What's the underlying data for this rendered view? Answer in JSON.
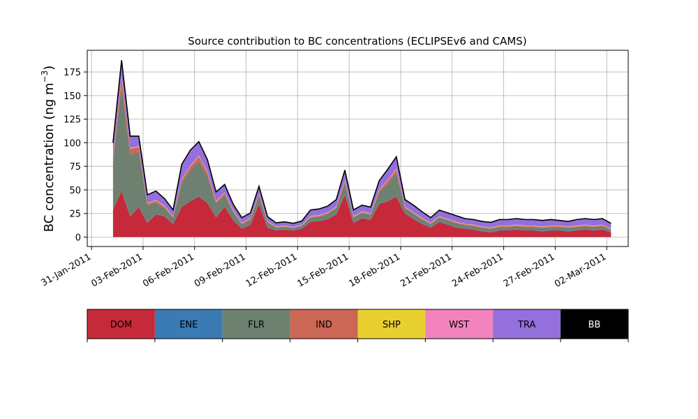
{
  "chart_data": {
    "type": "area",
    "title": "Source contribution to BC concentrations (ECLIPSEv6 and CAMS)",
    "xlabel": "",
    "ylabel_main": "BC concentration (ng m",
    "ylabel_sup": "−3",
    "ylabel_tail": ")",
    "ylim": [
      -10,
      198
    ],
    "xlim": [
      "2011-01-30T18:00",
      "2011-03-03T06:00"
    ],
    "grid": true,
    "yticks": [
      0,
      25,
      50,
      75,
      100,
      125,
      150,
      175
    ],
    "xticks": [
      {
        "date": "2011-01-31",
        "label": "31-Jan-2011"
      },
      {
        "date": "2011-02-03",
        "label": "03-Feb-2011"
      },
      {
        "date": "2011-02-06",
        "label": "06-Feb-2011"
      },
      {
        "date": "2011-02-09",
        "label": "09-Feb-2011"
      },
      {
        "date": "2011-02-12",
        "label": "12-Feb-2011"
      },
      {
        "date": "2011-02-15",
        "label": "15-Feb-2011"
      },
      {
        "date": "2011-02-18",
        "label": "18-Feb-2011"
      },
      {
        "date": "2011-02-21",
        "label": "21-Feb-2011"
      },
      {
        "date": "2011-02-24",
        "label": "24-Feb-2011"
      },
      {
        "date": "2011-02-27",
        "label": "27-Feb-2011"
      },
      {
        "date": "2011-03-02",
        "label": "02-Mar-2011"
      }
    ],
    "x": [
      "2011-02-01T06:00",
      "2011-02-01T18:00",
      "2011-02-02T06:00",
      "2011-02-02T18:00",
      "2011-02-03T06:00",
      "2011-02-03T18:00",
      "2011-02-04T06:00",
      "2011-02-04T18:00",
      "2011-02-05T06:00",
      "2011-02-05T18:00",
      "2011-02-06T06:00",
      "2011-02-06T18:00",
      "2011-02-07T06:00",
      "2011-02-07T18:00",
      "2011-02-08T06:00",
      "2011-02-08T18:00",
      "2011-02-09T06:00",
      "2011-02-09T18:00",
      "2011-02-10T06:00",
      "2011-02-10T18:00",
      "2011-02-11T06:00",
      "2011-02-11T18:00",
      "2011-02-12T06:00",
      "2011-02-12T18:00",
      "2011-02-13T06:00",
      "2011-02-13T18:00",
      "2011-02-14T06:00",
      "2011-02-14T18:00",
      "2011-02-15T06:00",
      "2011-02-15T18:00",
      "2011-02-16T06:00",
      "2011-02-16T18:00",
      "2011-02-17T06:00",
      "2011-02-17T18:00",
      "2011-02-18T06:00",
      "2011-02-18T18:00",
      "2011-02-19T06:00",
      "2011-02-19T18:00",
      "2011-02-20T06:00",
      "2011-02-20T18:00",
      "2011-02-21T06:00",
      "2011-02-21T18:00",
      "2011-02-22T06:00",
      "2011-02-22T18:00",
      "2011-02-23T06:00",
      "2011-02-23T18:00",
      "2011-02-24T06:00",
      "2011-02-24T18:00",
      "2011-02-25T06:00",
      "2011-02-25T18:00",
      "2011-02-26T06:00",
      "2011-02-26T18:00",
      "2011-02-27T06:00",
      "2011-02-27T18:00",
      "2011-02-28T06:00",
      "2011-02-28T18:00",
      "2011-03-01T06:00",
      "2011-03-01T18:00",
      "2011-03-02T06:00"
    ],
    "series": [
      {
        "name": "DOM",
        "color": "#c62a3a",
        "values": [
          29,
          49,
          22,
          32,
          15,
          24,
          22,
          14,
          32,
          38,
          43,
          36,
          21,
          32,
          18,
          9,
          13,
          35,
          10,
          7,
          8,
          7,
          9,
          16,
          17,
          19,
          24,
          45,
          15,
          20,
          18,
          35,
          38,
          43,
          25,
          19,
          14,
          10,
          16,
          13,
          10,
          9,
          8,
          6,
          5,
          7,
          7,
          8,
          7,
          7,
          6,
          7,
          7,
          6,
          7,
          8,
          7,
          8,
          5
        ]
      },
      {
        "name": "ENE",
        "color": "#3a7ab5",
        "values": [
          0.5,
          0.5,
          0.5,
          0.5,
          0.5,
          0.5,
          0.5,
          0.5,
          0.5,
          0.5,
          0.5,
          0.5,
          0.5,
          0.5,
          0.5,
          0.5,
          0.5,
          0.5,
          0.5,
          0.5,
          0.5,
          0.5,
          0.5,
          0.5,
          0.5,
          0.5,
          0.5,
          0.5,
          0.5,
          0.5,
          0.5,
          0.5,
          0.5,
          0.5,
          0.5,
          0.5,
          0.5,
          0.5,
          0.5,
          0.5,
          0.5,
          0.5,
          0.5,
          0.5,
          0.5,
          0.5,
          0.5,
          0.5,
          0.5,
          0.5,
          0.5,
          0.5,
          0.5,
          0.5,
          0.5,
          0.5,
          0.5,
          0.5,
          0.5
        ]
      },
      {
        "name": "FLR",
        "color": "#6e8070",
        "values": [
          50,
          110,
          65,
          58,
          18,
          12,
          8,
          6,
          25,
          32,
          37,
          28,
          14,
          12,
          8,
          4,
          5,
          8,
          5,
          2.5,
          2.5,
          2,
          2.5,
          4,
          4,
          5,
          6,
          12,
          5,
          5,
          5,
          12,
          18,
          25,
          5,
          5,
          4,
          3,
          4,
          4,
          4,
          3,
          3,
          3,
          3,
          3,
          3,
          3,
          3,
          3,
          3,
          3,
          3,
          3,
          3,
          3,
          3,
          3,
          2
        ]
      },
      {
        "name": "IND",
        "color": "#cc6655",
        "values": [
          5,
          10,
          6,
          5,
          2,
          2,
          2,
          1,
          3,
          4,
          5,
          4,
          2,
          2,
          1,
          1,
          1,
          2,
          1,
          0.5,
          0.5,
          0.5,
          0.5,
          1,
          1,
          1,
          1,
          2,
          1,
          1,
          1,
          2,
          3,
          3,
          1,
          1,
          1,
          1,
          1,
          1,
          1,
          1,
          1,
          1,
          1,
          1,
          1,
          1,
          1,
          1,
          1,
          1,
          1,
          1,
          1,
          1,
          1,
          1,
          1
        ]
      },
      {
        "name": "SHP",
        "color": "#e8cf30",
        "values": [
          0.3,
          0.3,
          0.3,
          0.3,
          0.3,
          0.3,
          0.3,
          0.3,
          0.3,
          0.3,
          0.3,
          0.3,
          0.3,
          0.3,
          0.3,
          0.3,
          0.3,
          0.3,
          0.3,
          0.3,
          0.3,
          0.3,
          0.3,
          0.3,
          0.3,
          0.3,
          0.3,
          0.3,
          0.3,
          0.3,
          0.3,
          0.3,
          0.3,
          0.3,
          0.3,
          0.3,
          0.3,
          0.3,
          0.3,
          0.3,
          0.3,
          0.3,
          0.3,
          0.3,
          0.3,
          0.3,
          0.3,
          0.3,
          0.3,
          0.3,
          0.3,
          0.3,
          0.3,
          0.3,
          0.3,
          0.3,
          0.3,
          0.3,
          0.3
        ]
      },
      {
        "name": "WST",
        "color": "#f283bd",
        "values": [
          0.7,
          1.2,
          0.7,
          0.7,
          0.5,
          0.5,
          0.5,
          0.5,
          0.7,
          0.8,
          0.8,
          0.7,
          0.5,
          0.5,
          0.5,
          0.3,
          0.3,
          0.5,
          0.3,
          0.3,
          0.3,
          0.3,
          0.3,
          0.5,
          0.5,
          0.5,
          0.5,
          0.7,
          0.5,
          0.5,
          0.5,
          0.5,
          0.7,
          0.8,
          0.5,
          0.5,
          0.5,
          0.3,
          0.3,
          0.3,
          0.3,
          0.3,
          0.3,
          0.3,
          0.3,
          0.3,
          0.3,
          0.3,
          0.3,
          0.3,
          0.3,
          0.3,
          0.3,
          0.3,
          0.3,
          0.3,
          0.3,
          0.3,
          0.3
        ]
      },
      {
        "name": "TRA",
        "color": "#9370db",
        "values": [
          14,
          16,
          12,
          10,
          8,
          9,
          7,
          6,
          15,
          16,
          14,
          12,
          9,
          8,
          6,
          5,
          5,
          7,
          4,
          3.5,
          3.5,
          3.5,
          3.5,
          6,
          6,
          6,
          7,
          10,
          6,
          6,
          6,
          9,
          11,
          12,
          7,
          7,
          6,
          5,
          6,
          6,
          6,
          5,
          5,
          5,
          5,
          6,
          6,
          6,
          6,
          6,
          6,
          6,
          5,
          5,
          6,
          6,
          6,
          6,
          5
        ]
      },
      {
        "name": "BB",
        "color": "#000000",
        "values": [
          0.5,
          0.5,
          0.5,
          0.5,
          0.5,
          0.5,
          0.5,
          0.5,
          0.5,
          0.5,
          0.5,
          0.5,
          0.5,
          0.5,
          0.5,
          0.5,
          0.5,
          0.5,
          0.5,
          0.5,
          0.5,
          0.5,
          0.5,
          0.5,
          0.5,
          0.5,
          0.5,
          0.5,
          0.5,
          0.5,
          0.5,
          0.5,
          0.5,
          0.5,
          0.5,
          0.5,
          0.5,
          0.5,
          0.5,
          0.5,
          0.5,
          0.5,
          0.5,
          0.5,
          0.5,
          0.5,
          0.5,
          0.5,
          0.5,
          0.5,
          0.5,
          0.5,
          0.5,
          0.5,
          0.5,
          0.5,
          0.5,
          0.5,
          0.5
        ]
      }
    ]
  },
  "legend": {
    "placement": "bottom",
    "items": [
      {
        "label": "DOM",
        "color": "#c62a3a",
        "text_color": "#000000"
      },
      {
        "label": "ENE",
        "color": "#3a7ab5",
        "text_color": "#000000"
      },
      {
        "label": "FLR",
        "color": "#6e8070",
        "text_color": "#000000"
      },
      {
        "label": "IND",
        "color": "#cc6655",
        "text_color": "#000000"
      },
      {
        "label": "SHP",
        "color": "#e8cf30",
        "text_color": "#000000"
      },
      {
        "label": "WST",
        "color": "#f283bd",
        "text_color": "#000000"
      },
      {
        "label": "TRA",
        "color": "#9370db",
        "text_color": "#000000"
      },
      {
        "label": "BB",
        "color": "#000000",
        "text_color": "#ffffff"
      }
    ]
  }
}
